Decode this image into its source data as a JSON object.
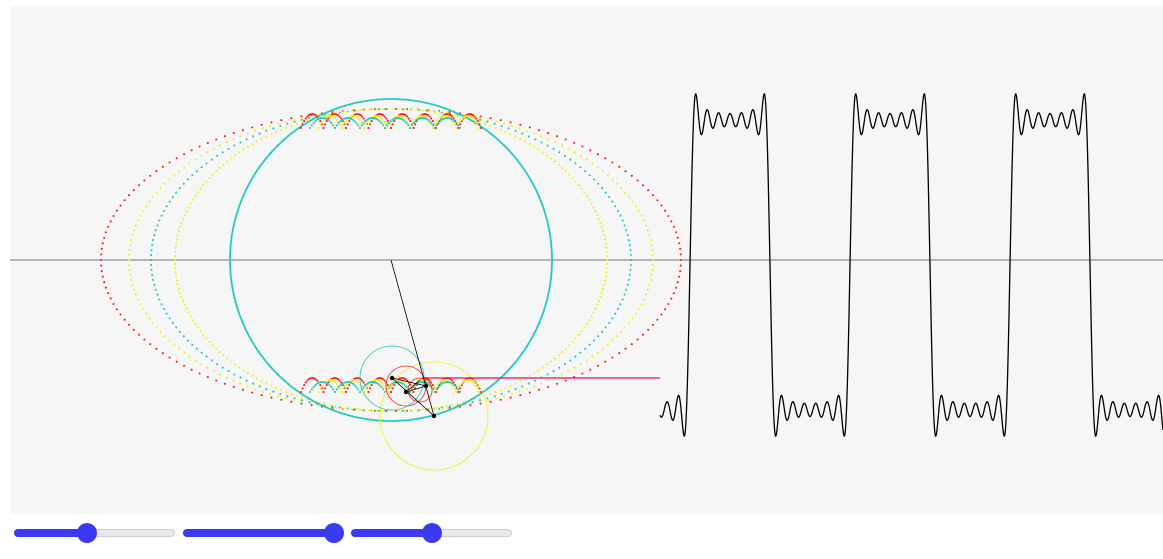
{
  "colors": {
    "background": "#f6f6f6",
    "axis": "#909090",
    "wave": "#000000",
    "connector": "#e0106a",
    "trace_red": "#ff1a1a",
    "trace_yellow": "#f2ee1a",
    "trace_cyan": "#1cc7c1",
    "slider_accent": "#3a3af0"
  },
  "sliders": [
    {
      "name": "slider-1",
      "value": 0.45
    },
    {
      "name": "slider-2",
      "value": 1.0
    },
    {
      "name": "slider-3",
      "value": 0.5
    }
  ]
}
